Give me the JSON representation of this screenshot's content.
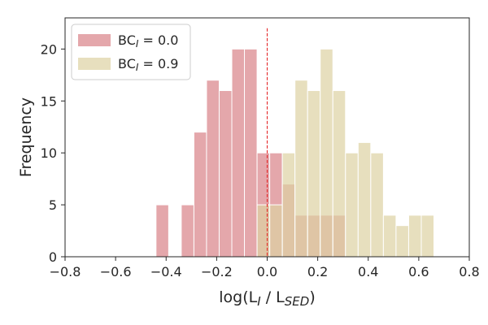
{
  "chart_data": {
    "type": "bar",
    "subtype": "overlaid-histogram",
    "xlabel": "log(L_I / L_SED)",
    "ylabel": "Frequency",
    "xlim": [
      -0.8,
      0.8
    ],
    "ylim": [
      0,
      23
    ],
    "xticks": [
      -0.8,
      -0.6,
      -0.4,
      -0.2,
      0.0,
      0.2,
      0.4,
      0.6,
      0.8
    ],
    "xtick_labels": [
      "−0.8",
      "−0.6",
      "−0.4",
      "−0.2",
      "0.0",
      "0.2",
      "0.4",
      "0.6",
      "0.8"
    ],
    "yticks": [
      0,
      5,
      10,
      15,
      20
    ],
    "ytick_labels": [
      "0",
      "5",
      "10",
      "15",
      "20"
    ],
    "bin_width": 0.05,
    "grid": false,
    "legend_position": "top-left",
    "reference_line": {
      "x": 0.0,
      "style": "dashed",
      "color": "#e31a1c"
    },
    "series": [
      {
        "name": "BC_I = 0.0",
        "legend_main": "BC",
        "legend_sub": "I",
        "legend_rest": " = 0.0",
        "color": "#d98288",
        "bins": [
          {
            "x0": -0.44,
            "count": 5
          },
          {
            "x0": -0.34,
            "count": 5
          },
          {
            "x0": -0.29,
            "count": 12
          },
          {
            "x0": -0.24,
            "count": 17
          },
          {
            "x0": -0.19,
            "count": 16
          },
          {
            "x0": -0.14,
            "count": 20
          },
          {
            "x0": -0.09,
            "count": 20
          },
          {
            "x0": -0.04,
            "count": 10
          },
          {
            "x0": 0.01,
            "count": 10
          },
          {
            "x0": 0.06,
            "count": 7
          },
          {
            "x0": 0.11,
            "count": 4
          },
          {
            "x0": 0.16,
            "count": 4
          },
          {
            "x0": 0.21,
            "count": 4
          },
          {
            "x0": 0.26,
            "count": 4
          }
        ]
      },
      {
        "name": "BC_I = 0.9",
        "legend_main": "BC",
        "legend_sub": "I",
        "legend_rest": " = 0.9",
        "color": "#ddd2a2",
        "bins": [
          {
            "x0": -0.04,
            "count": 5
          },
          {
            "x0": 0.01,
            "count": 5
          },
          {
            "x0": 0.06,
            "count": 10
          },
          {
            "x0": 0.11,
            "count": 17
          },
          {
            "x0": 0.16,
            "count": 16
          },
          {
            "x0": 0.21,
            "count": 20
          },
          {
            "x0": 0.26,
            "count": 16
          },
          {
            "x0": 0.31,
            "count": 10
          },
          {
            "x0": 0.36,
            "count": 11
          },
          {
            "x0": 0.41,
            "count": 10
          },
          {
            "x0": 0.46,
            "count": 4
          },
          {
            "x0": 0.51,
            "count": 3
          },
          {
            "x0": 0.56,
            "count": 4
          },
          {
            "x0": 0.61,
            "count": 4
          }
        ]
      }
    ]
  }
}
